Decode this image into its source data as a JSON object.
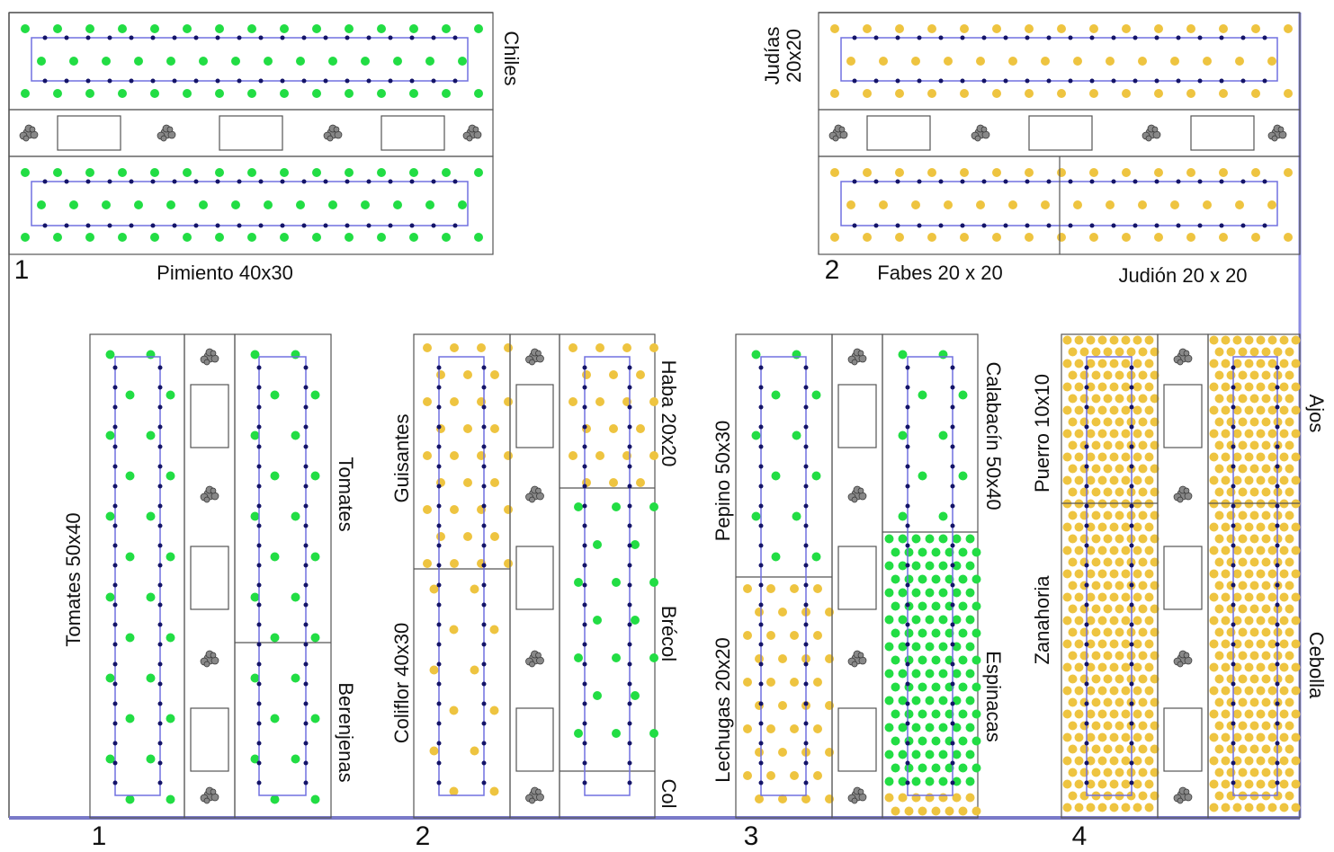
{
  "top_left": {
    "number": "1",
    "crop": "Pimiento 40x30",
    "side_label": "Chiles"
  },
  "top_right": {
    "number": "2",
    "side_label": [
      "Judías",
      "20x20"
    ],
    "crops": [
      "Fabes 20 x 20",
      "Judión 20 x 20"
    ]
  },
  "beds": [
    {
      "number": "1",
      "labels": [
        "Tomates 50x40",
        "Tomates",
        "Berenjenas"
      ]
    },
    {
      "number": "2",
      "labels": [
        "Guisantes",
        "Coliflor 40x30",
        "Haba 20x20",
        "Brécol",
        "Col"
      ]
    },
    {
      "number": "3",
      "labels": [
        "Pepino 50x30",
        "Lechugas 20x20",
        "Calabacín 50x40",
        "Espinacas"
      ]
    },
    {
      "number": "4",
      "labels": [
        "Puerro 10x10",
        "Zanahoria",
        "Ajos",
        "Cebolla"
      ]
    }
  ]
}
